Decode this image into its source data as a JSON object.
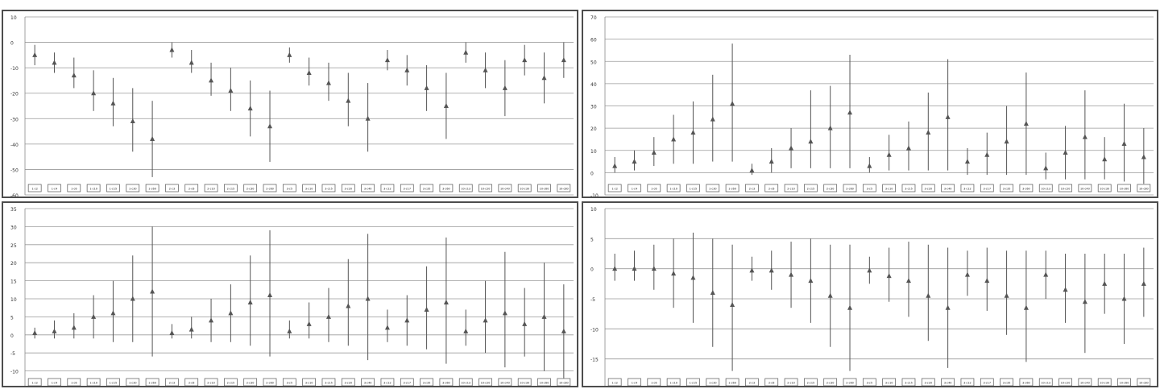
{
  "chart_data": [
    {
      "type": "errorbar",
      "ylim": [
        -60,
        10
      ],
      "yticks": [
        10,
        0,
        -10,
        -20,
        -30,
        -40,
        -50,
        -60
      ],
      "grid": true,
      "marker_color": "#555555",
      "categories": [
        "1-c2",
        "1-c4",
        "1-c6",
        "1-c10",
        "1-c15",
        "1-c30",
        "1-c60",
        "2-c3",
        "2-c6",
        "2-c10",
        "2-c15",
        "2-c30",
        "2-c60",
        "3-c5",
        "3-c10",
        "3-c15",
        "3-c20",
        "3-c40",
        "3-c12",
        "3-c17",
        "3-c35",
        "3-c60",
        "10-c13",
        "10-c20",
        "10-c40",
        "10-c30",
        "10-c60",
        "10-c80"
      ],
      "points": [
        {
          "y": -5,
          "low": -9,
          "high": -1
        },
        {
          "y": -8,
          "low": -12,
          "high": -4
        },
        {
          "y": -13,
          "low": -18,
          "high": -6
        },
        {
          "y": -20,
          "low": -27,
          "high": -11
        },
        {
          "y": -24,
          "low": -33,
          "high": -14
        },
        {
          "y": -31,
          "low": -43,
          "high": -18
        },
        {
          "y": -38,
          "low": -53,
          "high": -23
        },
        {
          "y": -3,
          "low": -6,
          "high": 0
        },
        {
          "y": -8,
          "low": -12,
          "high": -3
        },
        {
          "y": -15,
          "low": -21,
          "high": -8
        },
        {
          "y": -19,
          "low": -27,
          "high": -10
        },
        {
          "y": -26,
          "low": -37,
          "high": -15
        },
        {
          "y": -33,
          "low": -47,
          "high": -19
        },
        {
          "y": -5,
          "low": -8,
          "high": -2
        },
        {
          "y": -12,
          "low": -17,
          "high": -6
        },
        {
          "y": -16,
          "low": -23,
          "high": -8
        },
        {
          "y": -23,
          "low": -33,
          "high": -12
        },
        {
          "y": -30,
          "low": -43,
          "high": -16
        },
        {
          "y": -7,
          "low": -11,
          "high": -3
        },
        {
          "y": -11,
          "low": -17,
          "high": -5
        },
        {
          "y": -18,
          "low": -27,
          "high": -9
        },
        {
          "y": -25,
          "low": -38,
          "high": -12
        },
        {
          "y": -4,
          "low": -8,
          "high": 0
        },
        {
          "y": -11,
          "low": -18,
          "high": -4
        },
        {
          "y": -18,
          "low": -29,
          "high": -7
        },
        {
          "y": -7,
          "low": -13,
          "high": -1
        },
        {
          "y": -14,
          "low": -24,
          "high": -4
        },
        {
          "y": -7,
          "low": -14,
          "high": 0
        }
      ]
    },
    {
      "type": "errorbar",
      "ylim": [
        -10,
        70
      ],
      "yticks": [
        70,
        60,
        50,
        40,
        30,
        20,
        10,
        0,
        -10
      ],
      "grid": true,
      "marker_color": "#555555",
      "categories": [
        "1-c2",
        "1-c4",
        "1-c6",
        "1-c10",
        "1-c15",
        "1-c30",
        "1-c60",
        "2-c3",
        "2-c6",
        "2-c10",
        "2-c15",
        "2-c30",
        "2-c60",
        "3-c5",
        "3-c10",
        "3-c15",
        "3-c20",
        "3-c40",
        "3-c12",
        "3-c17",
        "3-c35",
        "3-c60",
        "10-c13",
        "10-c20",
        "10-c40",
        "10-c30",
        "10-c60",
        "10-c80"
      ],
      "points": [
        {
          "y": 3,
          "low": 0,
          "high": 7
        },
        {
          "y": 5,
          "low": 1,
          "high": 10
        },
        {
          "y": 9,
          "low": 3,
          "high": 16
        },
        {
          "y": 15,
          "low": 4,
          "high": 26
        },
        {
          "y": 18,
          "low": 4,
          "high": 32
        },
        {
          "y": 24,
          "low": 5,
          "high": 44
        },
        {
          "y": 31,
          "low": 5,
          "high": 58
        },
        {
          "y": 1,
          "low": -1,
          "high": 4
        },
        {
          "y": 5,
          "low": 0,
          "high": 11
        },
        {
          "y": 11,
          "low": 2,
          "high": 20
        },
        {
          "y": 14,
          "low": 2,
          "high": 37
        },
        {
          "y": 20,
          "low": 2,
          "high": 39
        },
        {
          "y": 27,
          "low": 2,
          "high": 53
        },
        {
          "y": 3,
          "low": 0,
          "high": 7
        },
        {
          "y": 8,
          "low": 1,
          "high": 17
        },
        {
          "y": 11,
          "low": 1,
          "high": 23
        },
        {
          "y": 18,
          "low": 1,
          "high": 36
        },
        {
          "y": 25,
          "low": 1,
          "high": 51
        },
        {
          "y": 5,
          "low": -1,
          "high": 11
        },
        {
          "y": 8,
          "low": -1,
          "high": 18
        },
        {
          "y": 14,
          "low": -1,
          "high": 30
        },
        {
          "y": 22,
          "low": -1,
          "high": 45
        },
        {
          "y": 2,
          "low": -3,
          "high": 9
        },
        {
          "y": 9,
          "low": -3,
          "high": 21
        },
        {
          "y": 16,
          "low": -3,
          "high": 37
        },
        {
          "y": 6,
          "low": -3,
          "high": 16
        },
        {
          "y": 13,
          "low": -4,
          "high": 31
        },
        {
          "y": 7,
          "low": -5,
          "high": 20
        }
      ]
    },
    {
      "type": "errorbar",
      "ylim": [
        -15,
        35
      ],
      "yticks": [
        35,
        30,
        25,
        20,
        15,
        10,
        5,
        0,
        -5,
        -10,
        -15
      ],
      "grid": true,
      "marker_color": "#555555",
      "categories": [
        "1-c2",
        "1-c4",
        "1-c6",
        "1-c10",
        "1-c15",
        "1-c30",
        "1-c60",
        "2-c3",
        "2-c6",
        "2-c10",
        "2-c15",
        "2-c30",
        "2-c60",
        "3-c5",
        "3-c10",
        "3-c15",
        "3-c20",
        "3-c40",
        "3-c12",
        "3-c17",
        "3-c35",
        "3-c60",
        "10-c13",
        "10-c20",
        "10-c40",
        "10-c30",
        "10-c60",
        "10-c80"
      ],
      "points": [
        {
          "y": 0.5,
          "low": -1,
          "high": 2
        },
        {
          "y": 1,
          "low": -1,
          "high": 4
        },
        {
          "y": 2,
          "low": -1,
          "high": 6
        },
        {
          "y": 5,
          "low": -1,
          "high": 11
        },
        {
          "y": 6,
          "low": -2,
          "high": 15
        },
        {
          "y": 10,
          "low": -2,
          "high": 22
        },
        {
          "y": 12,
          "low": -6,
          "high": 30
        },
        {
          "y": 0.5,
          "low": -1,
          "high": 3
        },
        {
          "y": 1.5,
          "low": -1,
          "high": 5
        },
        {
          "y": 4,
          "low": -2,
          "high": 10
        },
        {
          "y": 6,
          "low": -2,
          "high": 14
        },
        {
          "y": 9,
          "low": -3,
          "high": 22
        },
        {
          "y": 11,
          "low": -6,
          "high": 29
        },
        {
          "y": 1,
          "low": -1,
          "high": 4
        },
        {
          "y": 3,
          "low": -1,
          "high": 9
        },
        {
          "y": 5,
          "low": -2,
          "high": 13
        },
        {
          "y": 8,
          "low": -3,
          "high": 21
        },
        {
          "y": 10,
          "low": -7,
          "high": 28
        },
        {
          "y": 2,
          "low": -2,
          "high": 7
        },
        {
          "y": 4,
          "low": -3,
          "high": 11
        },
        {
          "y": 7,
          "low": -4,
          "high": 19
        },
        {
          "y": 9,
          "low": -8,
          "high": 27
        },
        {
          "y": 1,
          "low": -3,
          "high": 7
        },
        {
          "y": 4,
          "low": -5,
          "high": 15
        },
        {
          "y": 6,
          "low": -9,
          "high": 23
        },
        {
          "y": 3,
          "low": -6,
          "high": 13
        },
        {
          "y": 5,
          "low": -10,
          "high": 20
        },
        {
          "y": 1,
          "low": -12,
          "high": 14
        }
      ]
    },
    {
      "type": "errorbar",
      "ylim": [
        -20,
        10
      ],
      "yticks": [
        10,
        5,
        0,
        -5,
        -10,
        -15,
        -20
      ],
      "grid": true,
      "marker_color": "#555555",
      "categories": [
        "1-c2",
        "1-c4",
        "1-c6",
        "1-c10",
        "1-c15",
        "1-c30",
        "1-c60",
        "2-c3",
        "2-c6",
        "2-c10",
        "2-c15",
        "2-c30",
        "2-c60",
        "3-c5",
        "3-c10",
        "3-c15",
        "3-c20",
        "3-c40",
        "3-c12",
        "3-c17",
        "3-c35",
        "3-c60",
        "10-c13",
        "10-c20",
        "10-c40",
        "10-c30",
        "10-c60",
        "10-c80"
      ],
      "points": [
        {
          "y": 0,
          "low": -2,
          "high": 2.5
        },
        {
          "y": 0,
          "low": -2,
          "high": 3
        },
        {
          "y": 0,
          "low": -3.5,
          "high": 4
        },
        {
          "y": -0.8,
          "low": -6.5,
          "high": 5
        },
        {
          "y": -1.5,
          "low": -9,
          "high": 6
        },
        {
          "y": -4,
          "low": -13,
          "high": 5
        },
        {
          "y": -6,
          "low": -17,
          "high": 4
        },
        {
          "y": -0.3,
          "low": -2,
          "high": 2
        },
        {
          "y": -0.3,
          "low": -3.5,
          "high": 3
        },
        {
          "y": -1,
          "low": -6.5,
          "high": 4.5
        },
        {
          "y": -2,
          "low": -9,
          "high": 5
        },
        {
          "y": -4.5,
          "low": -13,
          "high": 4
        },
        {
          "y": -6.5,
          "low": -17,
          "high": 4
        },
        {
          "y": -0.3,
          "low": -2.5,
          "high": 2
        },
        {
          "y": -1.2,
          "low": -5.5,
          "high": 3.5
        },
        {
          "y": -2,
          "low": -8,
          "high": 4.5
        },
        {
          "y": -4.5,
          "low": -12,
          "high": 4
        },
        {
          "y": -6.5,
          "low": -16.5,
          "high": 3.5
        },
        {
          "y": -1,
          "low": -4.5,
          "high": 3
        },
        {
          "y": -2,
          "low": -7,
          "high": 3.5
        },
        {
          "y": -4.5,
          "low": -11,
          "high": 3
        },
        {
          "y": -6.5,
          "low": -15.5,
          "high": 3
        },
        {
          "y": -1,
          "low": -5,
          "high": 3
        },
        {
          "y": -3.5,
          "low": -9,
          "high": 2.5
        },
        {
          "y": -5.5,
          "low": -14,
          "high": 2.5
        },
        {
          "y": -2.5,
          "low": -7.5,
          "high": 2.5
        },
        {
          "y": -5,
          "low": -12.5,
          "high": 2.5
        },
        {
          "y": -2.5,
          "low": -8,
          "high": 3.5
        }
      ]
    }
  ]
}
